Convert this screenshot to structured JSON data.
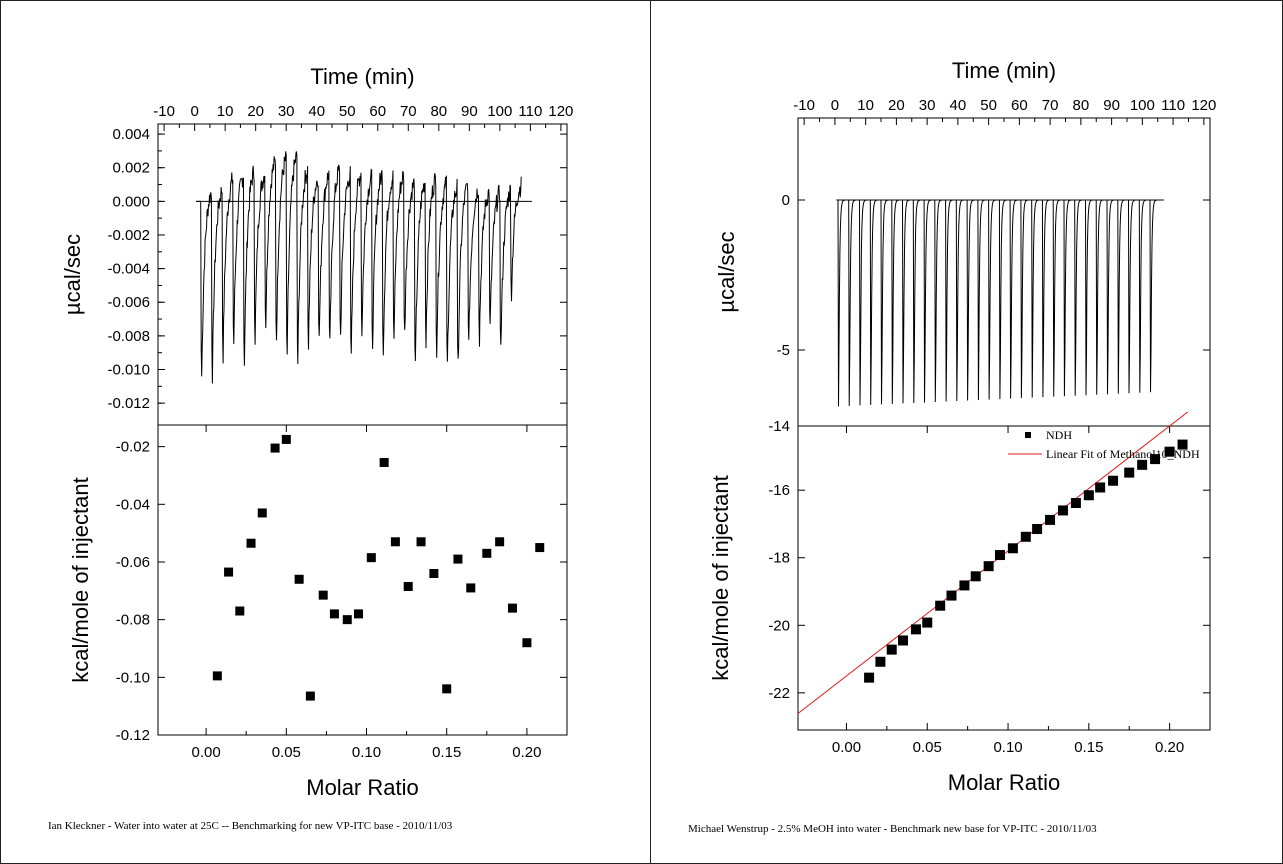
{
  "chart_data": [
    {
      "id": "left",
      "type": "scatter",
      "top_plot": {
        "type": "line",
        "title": "",
        "xlabel": "Time (min)",
        "ylabel": "µcal/sec",
        "xlim": [
          -12,
          122
        ],
        "ylim": [
          -0.0133,
          0.0046
        ],
        "x_ticks": [
          "-10",
          "0",
          "10",
          "20",
          "30",
          "40",
          "50",
          "60",
          "70",
          "80",
          "90",
          "100",
          "110",
          "120"
        ],
        "y_ticks": [
          "0.004",
          "0.002",
          "0.000",
          "-0.002",
          "-0.004",
          "-0.006",
          "-0.008",
          "-0.010",
          "-0.012"
        ],
        "baseline": 0.0,
        "injection_start": 2,
        "injection_interval": 3.5,
        "injection_count": 30,
        "peak_minima": [
          -0.0117,
          -0.0116,
          -0.0104,
          -0.0097,
          -0.0108,
          -0.0093,
          -0.0084,
          -0.0094,
          -0.0105,
          -0.011,
          -0.0097,
          -0.0095,
          -0.0099,
          -0.0092,
          -0.0107,
          -0.0089,
          -0.0096,
          -0.0101,
          -0.0093,
          -0.009,
          -0.0114,
          -0.0094,
          -0.0099,
          -0.011,
          -0.0112,
          -0.0097,
          -0.0092,
          -0.0086,
          -0.01,
          -0.0061
        ],
        "peak_maxima": [
          0.0011,
          0.0012,
          0.0018,
          0.002,
          0.0023,
          0.0021,
          0.0028,
          0.003,
          0.0032,
          0.0024,
          0.0019,
          0.0021,
          0.0024,
          0.002,
          0.0022,
          0.0018,
          0.0021,
          0.0019,
          0.002,
          0.0015,
          0.0017,
          0.0018,
          0.0015,
          0.0013,
          0.0015,
          0.0012,
          0.001,
          0.0009,
          0.0011,
          0.0012
        ]
      },
      "bottom_plot": {
        "xlabel": "Molar Ratio",
        "ylabel": "kcal/mole of injectant",
        "xlim": [
          -0.03,
          0.225
        ],
        "ylim": [
          -0.12,
          -0.0125
        ],
        "x_ticks": [
          "0.00",
          "0.05",
          "0.10",
          "0.15",
          "0.20"
        ],
        "y_ticks": [
          "-0.02",
          "-0.04",
          "-0.06",
          "-0.08",
          "-0.10",
          "-0.12"
        ],
        "x": [
          0.007,
          0.014,
          0.021,
          0.028,
          0.035,
          0.043,
          0.05,
          0.058,
          0.065,
          0.073,
          0.08,
          0.088,
          0.095,
          0.103,
          0.111,
          0.118,
          0.126,
          0.134,
          0.142,
          0.15,
          0.157,
          0.165,
          0.175,
          0.183,
          0.191,
          0.2,
          0.208
        ],
        "y": [
          -0.0995,
          -0.0635,
          -0.077,
          -0.0535,
          -0.043,
          -0.0205,
          -0.0175,
          -0.066,
          -0.1065,
          -0.0715,
          -0.078,
          -0.08,
          -0.078,
          -0.0585,
          -0.0255,
          -0.053,
          -0.0685,
          -0.053,
          -0.064,
          -0.104,
          -0.059,
          -0.069,
          -0.057,
          -0.053,
          -0.076,
          -0.088,
          -0.055
        ]
      },
      "caption": "Ian Kleckner - Water into water at 25C -- Benchmarking for new VP-ITC base - 2010/11/03"
    },
    {
      "id": "right",
      "type": "scatter",
      "top_plot": {
        "type": "line",
        "title": "",
        "xlabel": "Time (min)",
        "ylabel": "µcal/sec",
        "y_scale": "broken",
        "xlim": [
          -12,
          122
        ],
        "ylim": [
          -14,
          1.8
        ],
        "x_ticks": [
          "-10",
          "0",
          "10",
          "20",
          "30",
          "40",
          "50",
          "60",
          "70",
          "80",
          "90",
          "100",
          "110",
          "120"
        ],
        "y_ticks": [
          "0",
          "-5",
          "-14"
        ],
        "baseline": 0.0,
        "injection_start": 1,
        "injection_interval": 3.5,
        "injection_count": 30,
        "peak_depth_first": -12.6,
        "peak_depth_last": -10.8
      },
      "bottom_plot": {
        "xlabel": "Molar Ratio",
        "ylabel": "kcal/mole of injectant",
        "xlim": [
          -0.03,
          0.225
        ],
        "ylim": [
          -23.1,
          -14.1
        ],
        "x_ticks": [
          "0.00",
          "0.05",
          "0.10",
          "0.15",
          "0.20"
        ],
        "y_ticks": [
          "-16",
          "-18",
          "-20",
          "-22"
        ],
        "legend": [
          {
            "name": "NDH",
            "marker": "square"
          },
          {
            "name": "Linear Fit of Methanol10_NDH",
            "marker": "line",
            "color": "#e31a1c"
          }
        ],
        "legend_position": "top-right",
        "fit": {
          "slope": 37.0,
          "intercept": -21.5
        },
        "x": [
          0.014,
          0.021,
          0.028,
          0.035,
          0.043,
          0.05,
          0.058,
          0.065,
          0.073,
          0.08,
          0.088,
          0.095,
          0.103,
          0.111,
          0.118,
          0.126,
          0.134,
          0.142,
          0.15,
          0.157,
          0.165,
          0.175,
          0.183,
          0.191,
          0.2,
          0.208
        ],
        "y": [
          -21.55,
          -21.08,
          -20.72,
          -20.45,
          -20.12,
          -19.92,
          -19.42,
          -19.12,
          -18.82,
          -18.55,
          -18.25,
          -17.92,
          -17.72,
          -17.38,
          -17.15,
          -16.88,
          -16.6,
          -16.38,
          -16.15,
          -15.92,
          -15.72,
          -15.48,
          -15.25,
          -15.08,
          -14.86,
          -14.65
        ]
      },
      "caption": "Michael Wenstrup - 2.5% MeOH into water - Benchmark new base for VP-ITC - 2010/11/03"
    }
  ]
}
